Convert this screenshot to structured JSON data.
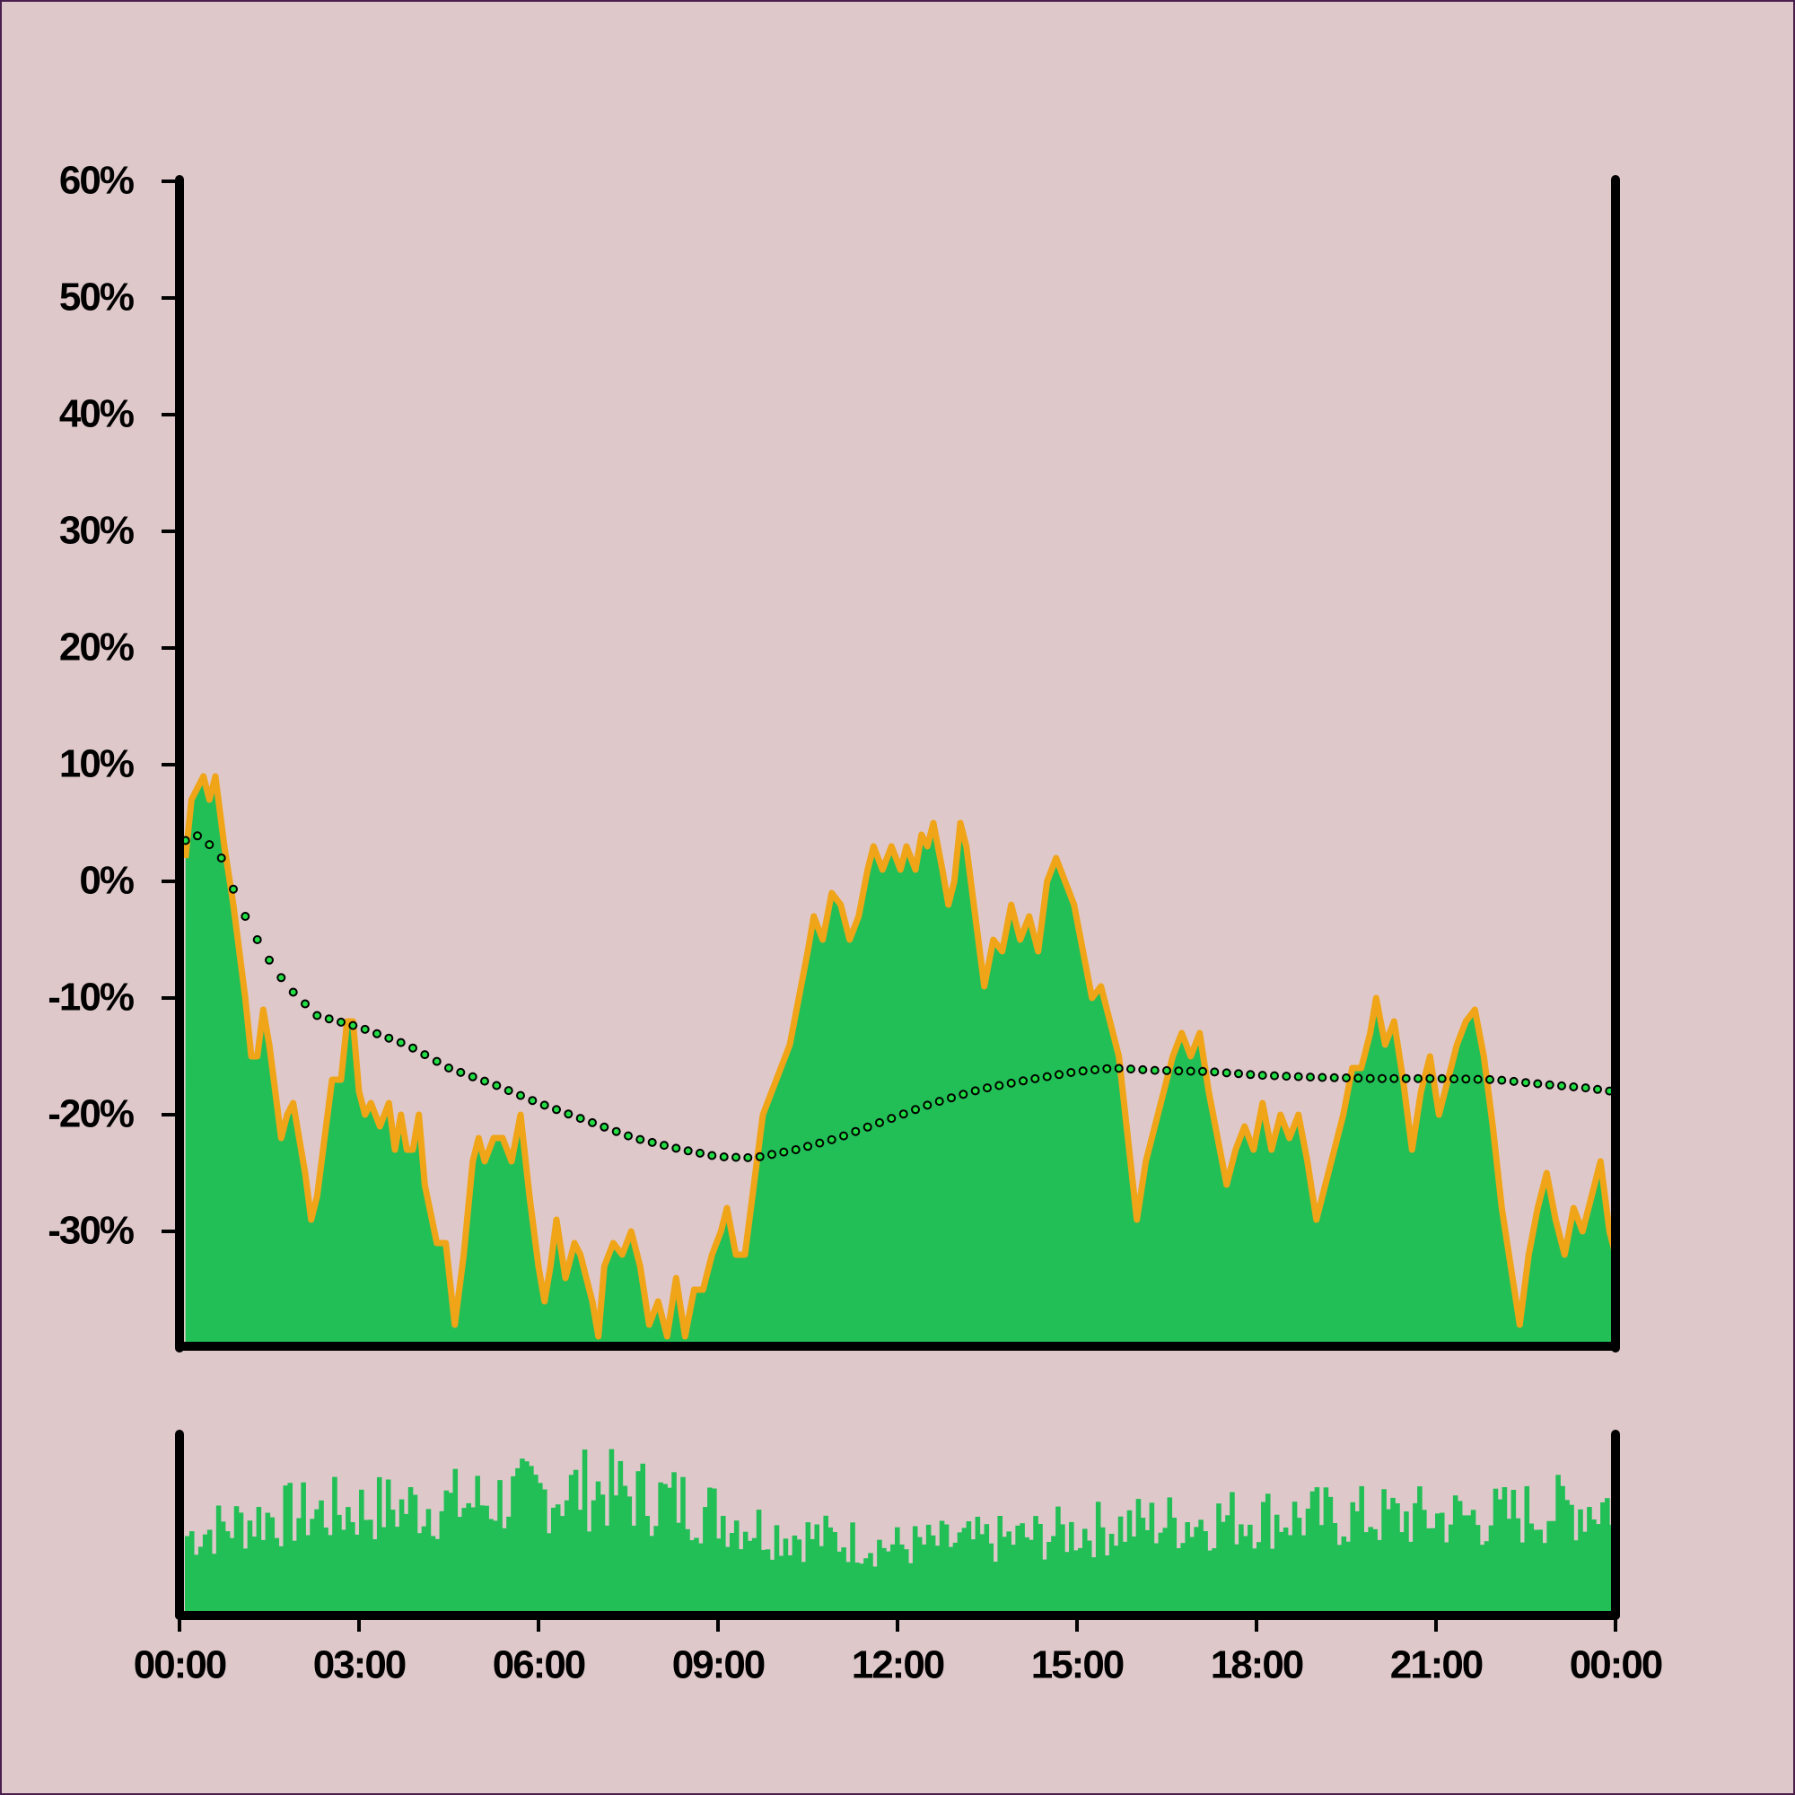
{
  "colors": {
    "background": "#dfc8c9",
    "frame": "#4a1f4f",
    "axis": "#000000",
    "area_fill": "#22bf57",
    "area_edge": "#f0a417",
    "ma_dot_fill": "#22dd44",
    "ma_dot_stroke": "#000000",
    "volume_fill": "#22bf57"
  },
  "chart_data": {
    "type": "area",
    "title": "",
    "xlabel": "",
    "ylabel": "",
    "x_range_hours": [
      0,
      24
    ],
    "ylim": [
      -39,
      60
    ],
    "grid": false,
    "legend": "none",
    "yticks": [
      {
        "value": 60,
        "label": "60%"
      },
      {
        "value": 50,
        "label": "50%"
      },
      {
        "value": 40,
        "label": "40%"
      },
      {
        "value": 30,
        "label": "30%"
      },
      {
        "value": 20,
        "label": "20%"
      },
      {
        "value": 10,
        "label": "10%"
      },
      {
        "value": 0,
        "label": "0%"
      },
      {
        "value": -10,
        "label": "-10%"
      },
      {
        "value": -20,
        "label": "-20%"
      },
      {
        "value": -30,
        "label": "-30%"
      }
    ],
    "xticks": [
      {
        "value": 0,
        "label": "00:00"
      },
      {
        "value": 3,
        "label": "03:00"
      },
      {
        "value": 6,
        "label": "06:00"
      },
      {
        "value": 9,
        "label": "09:00"
      },
      {
        "value": 12,
        "label": "12:00"
      },
      {
        "value": 15,
        "label": "15:00"
      },
      {
        "value": 18,
        "label": "18:00"
      },
      {
        "value": 21,
        "label": "21:00"
      },
      {
        "value": 24,
        "label": "00:00"
      }
    ],
    "series_price": [
      {
        "h": 0.1,
        "v": 2
      },
      {
        "h": 0.2,
        "v": 7
      },
      {
        "h": 0.3,
        "v": 8
      },
      {
        "h": 0.4,
        "v": 9
      },
      {
        "h": 0.5,
        "v": 7
      },
      {
        "h": 0.6,
        "v": 9
      },
      {
        "h": 0.75,
        "v": 3
      },
      {
        "h": 0.9,
        "v": -2
      },
      {
        "h": 1.1,
        "v": -10
      },
      {
        "h": 1.2,
        "v": -15
      },
      {
        "h": 1.3,
        "v": -15
      },
      {
        "h": 1.4,
        "v": -11
      },
      {
        "h": 1.5,
        "v": -14
      },
      {
        "h": 1.6,
        "v": -18
      },
      {
        "h": 1.7,
        "v": -22
      },
      {
        "h": 1.8,
        "v": -20
      },
      {
        "h": 1.9,
        "v": -19
      },
      {
        "h": 2.0,
        "v": -22
      },
      {
        "h": 2.1,
        "v": -25
      },
      {
        "h": 2.2,
        "v": -29
      },
      {
        "h": 2.3,
        "v": -27
      },
      {
        "h": 2.45,
        "v": -21
      },
      {
        "h": 2.55,
        "v": -17
      },
      {
        "h": 2.7,
        "v": -17
      },
      {
        "h": 2.8,
        "v": -12
      },
      {
        "h": 2.9,
        "v": -12
      },
      {
        "h": 3.0,
        "v": -18
      },
      {
        "h": 3.1,
        "v": -20
      },
      {
        "h": 3.2,
        "v": -19
      },
      {
        "h": 3.35,
        "v": -21
      },
      {
        "h": 3.5,
        "v": -19
      },
      {
        "h": 3.6,
        "v": -23
      },
      {
        "h": 3.7,
        "v": -20
      },
      {
        "h": 3.8,
        "v": -23
      },
      {
        "h": 3.9,
        "v": -23
      },
      {
        "h": 4.0,
        "v": -20
      },
      {
        "h": 4.1,
        "v": -26
      },
      {
        "h": 4.3,
        "v": -31
      },
      {
        "h": 4.45,
        "v": -31
      },
      {
        "h": 4.6,
        "v": -38
      },
      {
        "h": 4.75,
        "v": -32
      },
      {
        "h": 4.9,
        "v": -24
      },
      {
        "h": 5.0,
        "v": -22
      },
      {
        "h": 5.1,
        "v": -24
      },
      {
        "h": 5.25,
        "v": -22
      },
      {
        "h": 5.4,
        "v": -22
      },
      {
        "h": 5.55,
        "v": -24
      },
      {
        "h": 5.7,
        "v": -20
      },
      {
        "h": 5.85,
        "v": -27
      },
      {
        "h": 6.0,
        "v": -33
      },
      {
        "h": 6.1,
        "v": -36
      },
      {
        "h": 6.2,
        "v": -33
      },
      {
        "h": 6.3,
        "v": -29
      },
      {
        "h": 6.45,
        "v": -34
      },
      {
        "h": 6.6,
        "v": -31
      },
      {
        "h": 6.7,
        "v": -32
      },
      {
        "h": 6.8,
        "v": -34
      },
      {
        "h": 6.9,
        "v": -36
      },
      {
        "h": 7.0,
        "v": -39
      },
      {
        "h": 7.1,
        "v": -33
      },
      {
        "h": 7.25,
        "v": -31
      },
      {
        "h": 7.4,
        "v": -32
      },
      {
        "h": 7.55,
        "v": -30
      },
      {
        "h": 7.7,
        "v": -33
      },
      {
        "h": 7.85,
        "v": -38
      },
      {
        "h": 8.0,
        "v": -36
      },
      {
        "h": 8.15,
        "v": -39
      },
      {
        "h": 8.3,
        "v": -34
      },
      {
        "h": 8.45,
        "v": -39
      },
      {
        "h": 8.6,
        "v": -35
      },
      {
        "h": 8.75,
        "v": -35
      },
      {
        "h": 8.9,
        "v": -32
      },
      {
        "h": 9.05,
        "v": -30
      },
      {
        "h": 9.15,
        "v": -28
      },
      {
        "h": 9.3,
        "v": -32
      },
      {
        "h": 9.45,
        "v": -32
      },
      {
        "h": 9.6,
        "v": -26
      },
      {
        "h": 9.75,
        "v": -20
      },
      {
        "h": 9.9,
        "v": -18
      },
      {
        "h": 10.05,
        "v": -16
      },
      {
        "h": 10.2,
        "v": -14
      },
      {
        "h": 10.35,
        "v": -10
      },
      {
        "h": 10.5,
        "v": -6
      },
      {
        "h": 10.6,
        "v": -3
      },
      {
        "h": 10.75,
        "v": -5
      },
      {
        "h": 10.9,
        "v": -1
      },
      {
        "h": 11.05,
        "v": -2
      },
      {
        "h": 11.2,
        "v": -5
      },
      {
        "h": 11.35,
        "v": -3
      },
      {
        "h": 11.5,
        "v": 1
      },
      {
        "h": 11.6,
        "v": 3
      },
      {
        "h": 11.75,
        "v": 1
      },
      {
        "h": 11.9,
        "v": 3
      },
      {
        "h": 12.05,
        "v": 1
      },
      {
        "h": 12.15,
        "v": 3
      },
      {
        "h": 12.3,
        "v": 1
      },
      {
        "h": 12.4,
        "v": 4
      },
      {
        "h": 12.5,
        "v": 3
      },
      {
        "h": 12.6,
        "v": 5
      },
      {
        "h": 12.75,
        "v": 1
      },
      {
        "h": 12.85,
        "v": -2
      },
      {
        "h": 12.95,
        "v": 0
      },
      {
        "h": 13.05,
        "v": 5
      },
      {
        "h": 13.15,
        "v": 3
      },
      {
        "h": 13.3,
        "v": -3
      },
      {
        "h": 13.45,
        "v": -9
      },
      {
        "h": 13.6,
        "v": -5
      },
      {
        "h": 13.75,
        "v": -6
      },
      {
        "h": 13.9,
        "v": -2
      },
      {
        "h": 14.05,
        "v": -5
      },
      {
        "h": 14.2,
        "v": -3
      },
      {
        "h": 14.35,
        "v": -6
      },
      {
        "h": 14.5,
        "v": 0
      },
      {
        "h": 14.65,
        "v": 2
      },
      {
        "h": 14.8,
        "v": 0
      },
      {
        "h": 14.95,
        "v": -2
      },
      {
        "h": 15.1,
        "v": -6
      },
      {
        "h": 15.25,
        "v": -10
      },
      {
        "h": 15.4,
        "v": -9
      },
      {
        "h": 15.55,
        "v": -12
      },
      {
        "h": 15.7,
        "v": -15
      },
      {
        "h": 15.85,
        "v": -22
      },
      {
        "h": 16.0,
        "v": -29
      },
      {
        "h": 16.15,
        "v": -24
      },
      {
        "h": 16.3,
        "v": -21
      },
      {
        "h": 16.45,
        "v": -18
      },
      {
        "h": 16.6,
        "v": -15
      },
      {
        "h": 16.75,
        "v": -13
      },
      {
        "h": 16.9,
        "v": -15
      },
      {
        "h": 17.05,
        "v": -13
      },
      {
        "h": 17.2,
        "v": -18
      },
      {
        "h": 17.35,
        "v": -22
      },
      {
        "h": 17.5,
        "v": -26
      },
      {
        "h": 17.65,
        "v": -23
      },
      {
        "h": 17.8,
        "v": -21
      },
      {
        "h": 17.95,
        "v": -23
      },
      {
        "h": 18.1,
        "v": -19
      },
      {
        "h": 18.25,
        "v": -23
      },
      {
        "h": 18.4,
        "v": -20
      },
      {
        "h": 18.55,
        "v": -22
      },
      {
        "h": 18.7,
        "v": -20
      },
      {
        "h": 18.85,
        "v": -24
      },
      {
        "h": 19.0,
        "v": -29
      },
      {
        "h": 19.15,
        "v": -26
      },
      {
        "h": 19.3,
        "v": -23
      },
      {
        "h": 19.45,
        "v": -20
      },
      {
        "h": 19.6,
        "v": -16
      },
      {
        "h": 19.75,
        "v": -16
      },
      {
        "h": 19.9,
        "v": -13
      },
      {
        "h": 20.0,
        "v": -10
      },
      {
        "h": 20.15,
        "v": -14
      },
      {
        "h": 20.3,
        "v": -12
      },
      {
        "h": 20.45,
        "v": -17
      },
      {
        "h": 20.6,
        "v": -23
      },
      {
        "h": 20.75,
        "v": -18
      },
      {
        "h": 20.9,
        "v": -15
      },
      {
        "h": 21.05,
        "v": -20
      },
      {
        "h": 21.2,
        "v": -17
      },
      {
        "h": 21.35,
        "v": -14
      },
      {
        "h": 21.5,
        "v": -12
      },
      {
        "h": 21.65,
        "v": -11
      },
      {
        "h": 21.8,
        "v": -15
      },
      {
        "h": 21.95,
        "v": -21
      },
      {
        "h": 22.1,
        "v": -28
      },
      {
        "h": 22.25,
        "v": -33
      },
      {
        "h": 22.4,
        "v": -38
      },
      {
        "h": 22.55,
        "v": -32
      },
      {
        "h": 22.7,
        "v": -28
      },
      {
        "h": 22.85,
        "v": -25
      },
      {
        "h": 23.0,
        "v": -29
      },
      {
        "h": 23.15,
        "v": -32
      },
      {
        "h": 23.3,
        "v": -28
      },
      {
        "h": 23.45,
        "v": -30
      },
      {
        "h": 23.6,
        "v": -27
      },
      {
        "h": 23.75,
        "v": -24
      },
      {
        "h": 23.9,
        "v": -30
      },
      {
        "h": 24.0,
        "v": -32
      }
    ],
    "series_moving_average": [
      {
        "h": 0.1,
        "v": 3.5
      },
      {
        "h": 0.35,
        "v": 4
      },
      {
        "h": 0.7,
        "v": 2
      },
      {
        "h": 1.0,
        "v": -2
      },
      {
        "h": 1.4,
        "v": -6
      },
      {
        "h": 1.8,
        "v": -9
      },
      {
        "h": 2.3,
        "v": -11.5
      },
      {
        "h": 3.0,
        "v": -12.5
      },
      {
        "h": 3.8,
        "v": -14
      },
      {
        "h": 4.5,
        "v": -16
      },
      {
        "h": 5.3,
        "v": -17.5
      },
      {
        "h": 6.0,
        "v": -19
      },
      {
        "h": 6.8,
        "v": -20.5
      },
      {
        "h": 7.6,
        "v": -22
      },
      {
        "h": 8.4,
        "v": -23
      },
      {
        "h": 9.0,
        "v": -23.6
      },
      {
        "h": 9.6,
        "v": -23.7
      },
      {
        "h": 10.3,
        "v": -23
      },
      {
        "h": 11.0,
        "v": -22
      },
      {
        "h": 11.8,
        "v": -20.5
      },
      {
        "h": 12.6,
        "v": -19
      },
      {
        "h": 13.4,
        "v": -17.8
      },
      {
        "h": 14.2,
        "v": -17
      },
      {
        "h": 15.0,
        "v": -16.3
      },
      {
        "h": 15.6,
        "v": -16
      },
      {
        "h": 16.3,
        "v": -16.2
      },
      {
        "h": 17.2,
        "v": -16.3
      },
      {
        "h": 18.0,
        "v": -16.6
      },
      {
        "h": 19.0,
        "v": -16.8
      },
      {
        "h": 20.0,
        "v": -16.9
      },
      {
        "h": 21.0,
        "v": -16.9
      },
      {
        "h": 22.0,
        "v": -17
      },
      {
        "h": 22.8,
        "v": -17.4
      },
      {
        "h": 23.5,
        "v": -17.7
      },
      {
        "h": 23.95,
        "v": -18
      }
    ],
    "volume": {
      "bar_count": 320,
      "min_level": 0.1,
      "max_level": 1.0,
      "profile": [
        {
          "h": 0,
          "level": 0.5
        },
        {
          "h": 1.5,
          "level": 0.65
        },
        {
          "h": 3,
          "level": 0.7
        },
        {
          "h": 5,
          "level": 0.75
        },
        {
          "h": 7,
          "level": 0.85
        },
        {
          "h": 8.5,
          "level": 0.75
        },
        {
          "h": 10,
          "level": 0.55
        },
        {
          "h": 12,
          "level": 0.45
        },
        {
          "h": 14,
          "level": 0.5
        },
        {
          "h": 16,
          "level": 0.6
        },
        {
          "h": 18,
          "level": 0.65
        },
        {
          "h": 20,
          "level": 0.65
        },
        {
          "h": 22,
          "level": 0.65
        },
        {
          "h": 24,
          "level": 0.75
        }
      ]
    }
  }
}
